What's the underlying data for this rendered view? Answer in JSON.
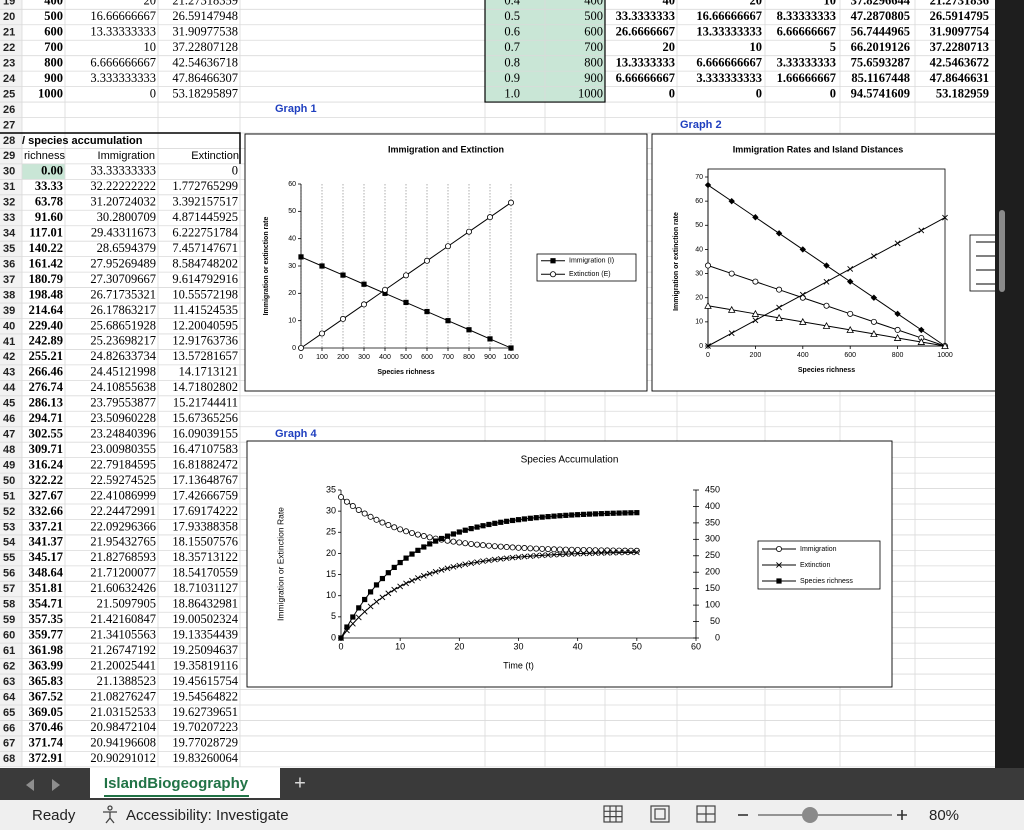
{
  "sheet": {
    "row_numbers": [
      19,
      20,
      21,
      22,
      23,
      24,
      25,
      26,
      27,
      28,
      29,
      30,
      31,
      32,
      33,
      34,
      35,
      36,
      37,
      38,
      39,
      40,
      41,
      42,
      43,
      44,
      45,
      46,
      47,
      48,
      49,
      50,
      51,
      52,
      53,
      54,
      55,
      56,
      57,
      58,
      59,
      60,
      61,
      62,
      63,
      64,
      65,
      66,
      67,
      68
    ],
    "upper_left": [
      [
        "400",
        "20",
        "21.27318359"
      ],
      [
        "500",
        "16.66666667",
        "26.59147948"
      ],
      [
        "600",
        "13.33333333",
        "31.90977538"
      ],
      [
        "700",
        "10",
        "37.22807128"
      ],
      [
        "800",
        "6.666666667",
        "42.54636718"
      ],
      [
        "900",
        "3.333333333",
        "47.86466307"
      ],
      [
        "1000",
        "0",
        "53.18295897"
      ]
    ],
    "upper_right": [
      [
        "0.4",
        "400",
        "40",
        "20",
        "10",
        "37.8296644",
        "21.2731836"
      ],
      [
        "0.5",
        "500",
        "33.3333333",
        "16.66666667",
        "8.33333333",
        "47.2870805",
        "26.5914795"
      ],
      [
        "0.6",
        "600",
        "26.6666667",
        "13.33333333",
        "6.66666667",
        "56.7444965",
        "31.9097754"
      ],
      [
        "0.7",
        "700",
        "20",
        "10",
        "5",
        "66.2019126",
        "37.2280713"
      ],
      [
        "0.8",
        "800",
        "13.3333333",
        "6.666666667",
        "3.33333333",
        "75.6593287",
        "42.5463672"
      ],
      [
        "0.9",
        "900",
        "6.66666667",
        "3.333333333",
        "1.66666667",
        "85.1167448",
        "47.8646631"
      ],
      [
        "1.0",
        "1000",
        "0",
        "0",
        "0",
        "94.5741609",
        "53.182959"
      ]
    ],
    "graph_labels": [
      "Graph 1",
      "Graph 2",
      "Graph 4"
    ],
    "accum_title": "/ species accumulation",
    "accum_header": [
      "richness",
      "Immigration",
      "Extinction"
    ],
    "accum_rows": [
      [
        "0.00",
        "33.33333333",
        "0"
      ],
      [
        "33.33",
        "32.22222222",
        "1.772765299"
      ],
      [
        "63.78",
        "31.20724032",
        "3.392157517"
      ],
      [
        "91.60",
        "30.2800709",
        "4.871445925"
      ],
      [
        "117.01",
        "29.43311673",
        "6.222751784"
      ],
      [
        "140.22",
        "28.6594379",
        "7.457147671"
      ],
      [
        "161.42",
        "27.95269489",
        "8.584748202"
      ],
      [
        "180.79",
        "27.30709667",
        "9.614792916"
      ],
      [
        "198.48",
        "26.71735321",
        "10.55572198"
      ],
      [
        "214.64",
        "26.17863217",
        "11.41524535"
      ],
      [
        "229.40",
        "25.68651928",
        "12.20040595"
      ],
      [
        "242.89",
        "25.23698217",
        "12.91763736"
      ],
      [
        "255.21",
        "24.82633734",
        "13.57281657"
      ],
      [
        "266.46",
        "24.45121998",
        "14.1713121"
      ],
      [
        "276.74",
        "24.10855638",
        "14.71802802"
      ],
      [
        "286.13",
        "23.79553877",
        "15.21744411"
      ],
      [
        "294.71",
        "23.50960228",
        "15.67365256"
      ],
      [
        "302.55",
        "23.24840396",
        "16.09039155"
      ],
      [
        "309.71",
        "23.00980355",
        "16.47107583"
      ],
      [
        "316.24",
        "22.79184595",
        "16.81882472"
      ],
      [
        "322.22",
        "22.59274525",
        "17.13648767"
      ],
      [
        "327.67",
        "22.41086999",
        "17.42666759"
      ],
      [
        "332.66",
        "22.24472991",
        "17.69174222"
      ],
      [
        "337.21",
        "22.09296366",
        "17.93388358"
      ],
      [
        "341.37",
        "21.95432765",
        "18.15507576"
      ],
      [
        "345.17",
        "21.82768593",
        "18.35713122"
      ],
      [
        "348.64",
        "21.71200077",
        "18.54170559"
      ],
      [
        "351.81",
        "21.60632426",
        "18.71031127"
      ],
      [
        "354.71",
        "21.5097905",
        "18.86432981"
      ],
      [
        "357.35",
        "21.42160847",
        "19.00502324"
      ],
      [
        "359.77",
        "21.34105563",
        "19.13354439"
      ],
      [
        "361.98",
        "21.26747192",
        "19.25094637"
      ],
      [
        "363.99",
        "21.20025441",
        "19.35819116"
      ],
      [
        "365.83",
        "21.1388523",
        "19.45615754"
      ],
      [
        "367.52",
        "21.08276247",
        "19.54564822"
      ],
      [
        "369.05",
        "21.03152533",
        "19.62739651"
      ],
      [
        "370.46",
        "20.98472104",
        "19.70207223"
      ],
      [
        "371.74",
        "20.94196608",
        "19.77028729"
      ],
      [
        "372.91",
        "20.90291012",
        "19.83260064"
      ]
    ]
  },
  "chart_data": [
    {
      "type": "line",
      "title": "Immigration and Extinction",
      "x_label": "Species richness",
      "y_label": "Immigration or extinction rate",
      "x": [
        0,
        100,
        200,
        300,
        400,
        500,
        600,
        700,
        800,
        900,
        1000
      ],
      "xlim": [
        0,
        1000
      ],
      "xticks": [
        0,
        100,
        200,
        300,
        400,
        500,
        600,
        700,
        800,
        900,
        1000
      ],
      "ylim": [
        0,
        60
      ],
      "yticks": [
        0,
        10,
        20,
        30,
        40,
        50,
        60
      ],
      "grid": "x",
      "legend": "right",
      "series": [
        {
          "name": "Immigration (I)",
          "color": "#000000",
          "marker": "square",
          "values": [
            33.33,
            30,
            26.67,
            23.33,
            20,
            16.67,
            13.33,
            10,
            6.67,
            3.33,
            0
          ]
        },
        {
          "name": "Extinction (E)",
          "color": "#000000",
          "marker": "circle-open",
          "values": [
            0,
            5.32,
            10.64,
            15.95,
            21.27,
            26.59,
            31.91,
            37.23,
            42.55,
            47.86,
            53.18
          ]
        }
      ]
    },
    {
      "type": "line",
      "title": "Immigration Rates and Island Distances",
      "x_label": "Species richness",
      "y_label": "Immigration or extinction rate",
      "x": [
        0,
        100,
        200,
        300,
        400,
        500,
        600,
        700,
        800,
        900,
        1000
      ],
      "xlim": [
        0,
        1000
      ],
      "xticks": [
        0,
        200,
        400,
        600,
        800,
        1000
      ],
      "ylim": [
        0,
        70
      ],
      "yticks": [
        0,
        10,
        20,
        30,
        40,
        50,
        60,
        70
      ],
      "series": [
        {
          "color": "#000000",
          "marker": "diamond",
          "values": [
            66.67,
            60,
            53.33,
            46.67,
            40,
            33.33,
            26.67,
            20,
            13.33,
            6.67,
            0
          ]
        },
        {
          "color": "#000000",
          "marker": "circle-open",
          "values": [
            33.33,
            30,
            26.67,
            23.33,
            20,
            16.67,
            13.33,
            10,
            6.67,
            3.33,
            0
          ]
        },
        {
          "color": "#000000",
          "marker": "triangle-open",
          "values": [
            16.67,
            15,
            13.33,
            11.67,
            10,
            8.33,
            6.67,
            5,
            3.33,
            1.67,
            0
          ]
        },
        {
          "color": "#000000",
          "marker": "x",
          "values": [
            0,
            5.32,
            10.64,
            15.95,
            21.27,
            26.59,
            31.91,
            37.23,
            42.55,
            47.86,
            53.18
          ]
        }
      ]
    },
    {
      "type": "line",
      "title": "Species Accumulation",
      "x_label": "Time (t)",
      "y_label": "Immigration or Extinction Rate",
      "x": [
        0,
        1,
        2,
        3,
        4,
        5,
        6,
        7,
        8,
        9,
        10,
        11,
        12,
        13,
        14,
        15,
        16,
        17,
        18,
        19,
        20,
        21,
        22,
        23,
        24,
        25,
        26,
        27,
        28,
        29,
        30,
        31,
        32,
        33,
        34,
        35,
        36,
        37,
        38,
        39,
        40,
        41,
        42,
        43,
        44,
        45,
        46,
        47,
        48,
        49,
        50
      ],
      "xlim": [
        0,
        60
      ],
      "xticks": [
        0,
        10,
        20,
        30,
        40,
        50,
        60
      ],
      "ylim": [
        0,
        35
      ],
      "yticks": [
        0,
        5,
        10,
        15,
        20,
        25,
        30,
        35
      ],
      "y2lim": [
        0,
        450
      ],
      "y2ticks": [
        0,
        50,
        100,
        150,
        200,
        250,
        300,
        350,
        400,
        450
      ],
      "legend": "right",
      "series": [
        {
          "name": "Immigration",
          "color": "#000000",
          "marker": "circle-open",
          "values": [
            33.33,
            32.22,
            31.21,
            30.28,
            29.43,
            28.66,
            27.95,
            27.31,
            26.72,
            26.18,
            25.69,
            25.24,
            24.83,
            24.45,
            24.11,
            23.8,
            23.51,
            23.25,
            23.01,
            22.79,
            22.59,
            22.41,
            22.24,
            22.09,
            21.95,
            21.83,
            21.71,
            21.61,
            21.51,
            21.42,
            21.34,
            21.27,
            21.2,
            21.14,
            21.08,
            21.03,
            20.98,
            20.94,
            20.9,
            20.87,
            20.84,
            20.81,
            20.78,
            20.75,
            20.73,
            20.71,
            20.69,
            20.67,
            20.66,
            20.64,
            20.63
          ]
        },
        {
          "name": "Extinction",
          "color": "#000000",
          "marker": "x",
          "values": [
            0,
            1.77,
            3.39,
            4.87,
            6.22,
            7.46,
            8.58,
            9.61,
            10.56,
            11.42,
            12.2,
            12.92,
            13.57,
            14.17,
            14.72,
            15.22,
            15.67,
            16.09,
            16.47,
            16.82,
            17.14,
            17.43,
            17.69,
            17.93,
            18.16,
            18.36,
            18.54,
            18.71,
            18.86,
            19.01,
            19.13,
            19.25,
            19.36,
            19.46,
            19.55,
            19.63,
            19.7,
            19.77,
            19.83,
            19.89,
            19.94,
            19.99,
            20.03,
            20.07,
            20.11,
            20.14,
            20.17,
            20.2,
            20.23,
            20.25,
            20.27
          ]
        },
        {
          "name": "Species richness",
          "color": "#000000",
          "marker": "square",
          "axis": "y2",
          "values": [
            0,
            33.33,
            63.78,
            91.6,
            117.01,
            140.22,
            161.42,
            180.79,
            198.48,
            214.64,
            229.4,
            242.89,
            255.21,
            266.46,
            276.74,
            286.13,
            294.71,
            302.55,
            309.71,
            316.24,
            322.22,
            327.67,
            332.66,
            337.21,
            341.37,
            345.17,
            348.64,
            351.81,
            354.71,
            357.35,
            359.77,
            361.98,
            363.99,
            365.83,
            367.52,
            369.05,
            370.46,
            371.74,
            372.91,
            373.98,
            374.96,
            375.86,
            376.67,
            377.42,
            378.1,
            378.72,
            379.29,
            379.81,
            380.29,
            380.72,
            381.12
          ]
        }
      ]
    }
  ],
  "tabs": {
    "sheet_tab": "IslandBiogeography",
    "add_sheet": "+"
  },
  "status": {
    "ready": "Ready",
    "accessibility": "Accessibility: Investigate",
    "zoom": "80%"
  }
}
